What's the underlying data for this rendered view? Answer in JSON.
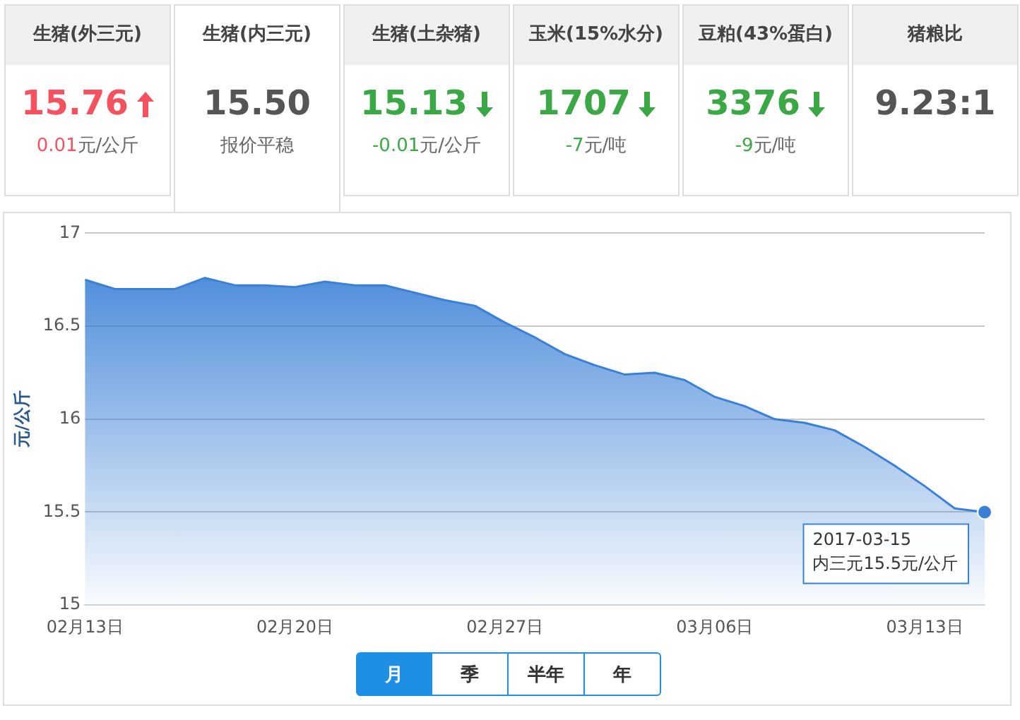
{
  "chart_data": [
    {
      "type": "other",
      "annotations": [
        "生猪(外三元)",
        "15.76",
        "0.01元/公斤",
        "生猪(内三元)",
        "15.50",
        "报价平稳",
        "生猪(土杂猪)",
        "15.13",
        "-0.01元/公斤",
        "玉米(15%水分)",
        "1707",
        "-7元/吨",
        "豆粕(43%蛋白)",
        "3376",
        "-9元/吨",
        "猪粮比",
        "9.23:1"
      ]
    },
    {
      "type": "area",
      "ylabel": "元/公斤",
      "x": [
        "2017-02-13",
        "2017-02-14",
        "2017-02-15",
        "2017-02-16",
        "2017-02-17",
        "2017-02-18",
        "2017-02-19",
        "2017-02-20",
        "2017-02-21",
        "2017-02-22",
        "2017-02-23",
        "2017-02-24",
        "2017-02-25",
        "2017-02-26",
        "2017-02-27",
        "2017-02-28",
        "2017-03-01",
        "2017-03-02",
        "2017-03-03",
        "2017-03-04",
        "2017-03-05",
        "2017-03-06",
        "2017-03-07",
        "2017-03-08",
        "2017-03-09",
        "2017-03-10",
        "2017-03-11",
        "2017-03-12",
        "2017-03-13",
        "2017-03-14",
        "2017-03-15"
      ],
      "series": [
        {
          "color": "#3a80d6",
          "values": [
            16.75,
            16.7,
            16.7,
            16.7,
            16.76,
            16.72,
            16.72,
            16.71,
            16.74,
            16.72,
            16.72,
            16.68,
            16.64,
            16.61,
            16.52,
            16.44,
            16.35,
            16.29,
            16.24,
            16.25,
            16.21,
            16.12,
            16.07,
            16.0,
            15.98,
            15.94,
            15.85,
            15.75,
            15.64,
            15.52,
            15.5
          ]
        }
      ],
      "xlim": [
        "2017-02-13",
        "2017-03-15"
      ],
      "xticks": [
        {
          "value": "2017-02-13",
          "label": "02月13日"
        },
        {
          "value": "2017-02-20",
          "label": "02月20日"
        },
        {
          "value": "2017-02-27",
          "label": "02月27日"
        },
        {
          "value": "2017-03-06",
          "label": "03月06日"
        },
        {
          "value": "2017-03-13",
          "label": "03月13日"
        }
      ],
      "ylim": [
        15,
        17
      ],
      "yticks": [
        15,
        15.5,
        16,
        16.5,
        17
      ],
      "grid": "y",
      "legend": false,
      "marker": "none",
      "annotations": [
        {
          "text": "2017-03-15\n内三元15.5元/公斤",
          "x": "2017-03-15",
          "y": 15.5
        },
        "月",
        "季",
        "半年",
        "年"
      ]
    }
  ]
}
